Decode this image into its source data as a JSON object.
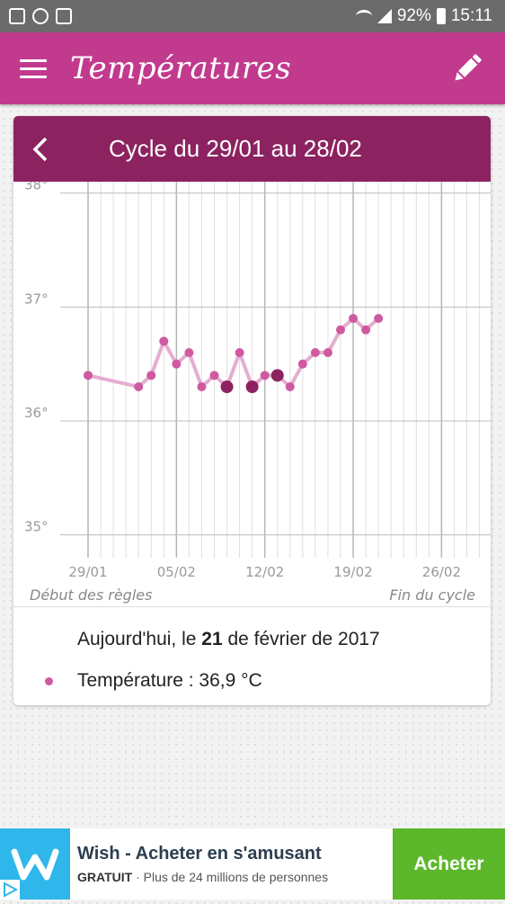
{
  "status_bar": {
    "battery": "92%",
    "time": "15:11"
  },
  "app_bar": {
    "title": "Températures"
  },
  "card": {
    "title": "Cycle du 29/01 au 28/02",
    "chart_start_label": "Début des règles",
    "chart_end_label": "Fin du cycle",
    "today_prefix": "Aujourd'hui, le ",
    "today_day": "21",
    "today_suffix": " de février de 2017",
    "temperature_text": "Température : 36,9 °C"
  },
  "chart_data": {
    "type": "line",
    "x_start": "29/01",
    "x_end": "28/02",
    "x_tick_labels": [
      "29/01",
      "05/02",
      "12/02",
      "19/02",
      "26/02"
    ],
    "x_tick_days": [
      0,
      7,
      14,
      21,
      28
    ],
    "y_tick_labels": [
      "38°",
      "37°",
      "36°",
      "35°"
    ],
    "y_tick_values": [
      38,
      37,
      36,
      35
    ],
    "ylim": [
      34.8,
      38.1
    ],
    "points": [
      {
        "day": 0,
        "temp": 36.4
      },
      {
        "day": 4,
        "temp": 36.3
      },
      {
        "day": 5,
        "temp": 36.4
      },
      {
        "day": 6,
        "temp": 36.7
      },
      {
        "day": 7,
        "temp": 36.5
      },
      {
        "day": 8,
        "temp": 36.6
      },
      {
        "day": 9,
        "temp": 36.3
      },
      {
        "day": 10,
        "temp": 36.4
      },
      {
        "day": 11,
        "temp": 36.3,
        "marked": true
      },
      {
        "day": 12,
        "temp": 36.6
      },
      {
        "day": 13,
        "temp": 36.3,
        "marked": true
      },
      {
        "day": 14,
        "temp": 36.4
      },
      {
        "day": 15,
        "temp": 36.4,
        "marked": true
      },
      {
        "day": 16,
        "temp": 36.3
      },
      {
        "day": 17,
        "temp": 36.5
      },
      {
        "day": 18,
        "temp": 36.6
      },
      {
        "day": 19,
        "temp": 36.6
      },
      {
        "day": 20,
        "temp": 36.8
      },
      {
        "day": 21,
        "temp": 36.9
      },
      {
        "day": 22,
        "temp": 36.8
      },
      {
        "day": 23,
        "temp": 36.9
      }
    ],
    "colors": {
      "line": "#e4aed0",
      "point": "#cf5aa0",
      "marked_point": "#8c2360",
      "grid": "#cfcfcf"
    }
  },
  "ad": {
    "title": "Wish - Acheter en s'amusant",
    "sub_bold": "GRATUIT",
    "sub_rest": " · Plus de 24 millions de personnes",
    "button": "Acheter",
    "colors": {
      "logo_bg": "#2fb7ec",
      "button_bg": "#5cb82a"
    }
  },
  "icons": [
    "image-icon",
    "whatsapp-icon",
    "recycle-icon",
    "wifi-icon",
    "signal-icon",
    "battery-icon",
    "menu-icon",
    "pencil-icon",
    "back-arrow-icon",
    "wish-logo-icon",
    "adchoices-icon"
  ]
}
